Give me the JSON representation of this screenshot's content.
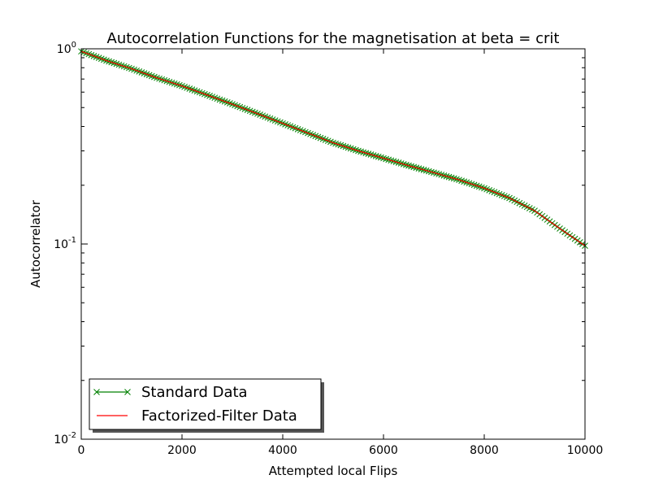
{
  "chart_data": {
    "type": "line",
    "title": "Autocorrelation Functions for the magnetisation at beta = crit",
    "xlabel": "Attempted local Flips",
    "ylabel": "Autocorrelator",
    "xlim": [
      0,
      10000
    ],
    "ylim": [
      0.01,
      1
    ],
    "yscale": "log",
    "x_ticks": [
      0,
      2000,
      4000,
      6000,
      8000,
      10000
    ],
    "x_tick_labels": [
      "0",
      "2000",
      "4000",
      "6000",
      "8000",
      "10000"
    ],
    "y_ticks": [
      0.01,
      0.1,
      1
    ],
    "y_tick_labels": [
      {
        "base": "10",
        "exp": "-2"
      },
      {
        "base": "10",
        "exp": "-1"
      },
      {
        "base": "10",
        "exp": "0"
      }
    ],
    "grid": false,
    "legend_position": "lower-left",
    "x": [
      0,
      500,
      1000,
      1500,
      2000,
      2500,
      3000,
      3500,
      4000,
      4500,
      5000,
      5500,
      6000,
      6500,
      7000,
      7500,
      8000,
      8500,
      9000,
      9500,
      10000
    ],
    "series": [
      {
        "name": "Standard Data",
        "color": "#008000",
        "marker": "x",
        "values": [
          0.97,
          0.87,
          0.79,
          0.71,
          0.645,
          0.58,
          0.52,
          0.465,
          0.415,
          0.37,
          0.33,
          0.3,
          0.275,
          0.252,
          0.232,
          0.213,
          0.193,
          0.172,
          0.148,
          0.12,
          0.098
        ]
      },
      {
        "name": "Factorized-Filter Data",
        "color": "#ff0000",
        "marker": "none",
        "values": [
          0.97,
          0.87,
          0.79,
          0.71,
          0.645,
          0.58,
          0.52,
          0.465,
          0.415,
          0.37,
          0.33,
          0.3,
          0.275,
          0.252,
          0.232,
          0.213,
          0.193,
          0.172,
          0.148,
          0.12,
          0.098
        ]
      }
    ]
  }
}
